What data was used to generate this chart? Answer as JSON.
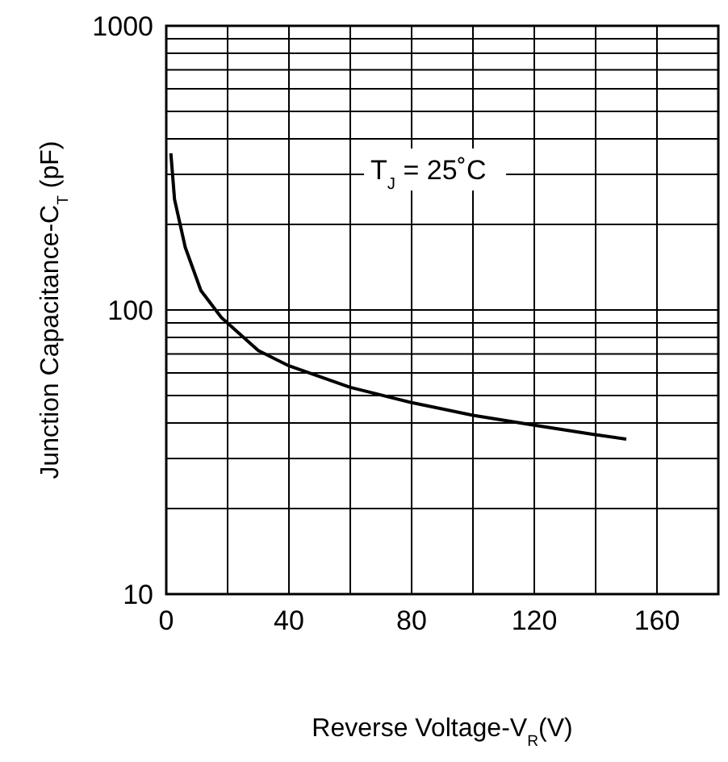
{
  "chart_data": {
    "type": "line",
    "xlabel": "Reverse Voltage-V$_{R}$(V)",
    "ylabel": "Junction Capacitance-C$_{T}$ (pF)",
    "annotations": [
      "T$_{J}$ = 25˚C"
    ],
    "series": [
      {
        "color": "#000000",
        "x": [
          1.5,
          2.7,
          6.2,
          11.3,
          18,
          30,
          40,
          60,
          80,
          100,
          120,
          139,
          150
        ],
        "values": [
          356,
          245,
          166,
          117,
          94,
          72,
          63.6,
          53.4,
          47.2,
          42.6,
          39.3,
          36.5,
          35.1
        ]
      }
    ],
    "xlim": [
      0,
      180
    ],
    "xticks": [
      0,
      {
        "value": 20,
        "label": null
      },
      40,
      {
        "value": 60,
        "label": null
      },
      80,
      {
        "value": 100,
        "label": null
      },
      120,
      {
        "value": 140,
        "label": null
      },
      160,
      {
        "value": 180,
        "label": null
      }
    ],
    "ylim": [
      10,
      1000
    ],
    "log": "y",
    "yticks": [
      10,
      {
        "value": 20,
        "label": null
      },
      {
        "value": 30,
        "label": null
      },
      {
        "value": 40,
        "label": null
      },
      {
        "value": 50,
        "label": null
      },
      {
        "value": 60,
        "label": null
      },
      {
        "value": 70,
        "label": null
      },
      {
        "value": 80,
        "label": null
      },
      {
        "value": 90,
        "label": null
      },
      100,
      {
        "value": 200,
        "label": null
      },
      {
        "value": 300,
        "label": null
      },
      {
        "value": 400,
        "label": null
      },
      {
        "value": 500,
        "label": null
      },
      {
        "value": 600,
        "label": null
      },
      {
        "value": 700,
        "label": null
      },
      {
        "value": 800,
        "label": null
      },
      {
        "value": 900,
        "label": null
      },
      1000
    ],
    "grid": true,
    "marker": "none",
    "line_style": "solid"
  }
}
